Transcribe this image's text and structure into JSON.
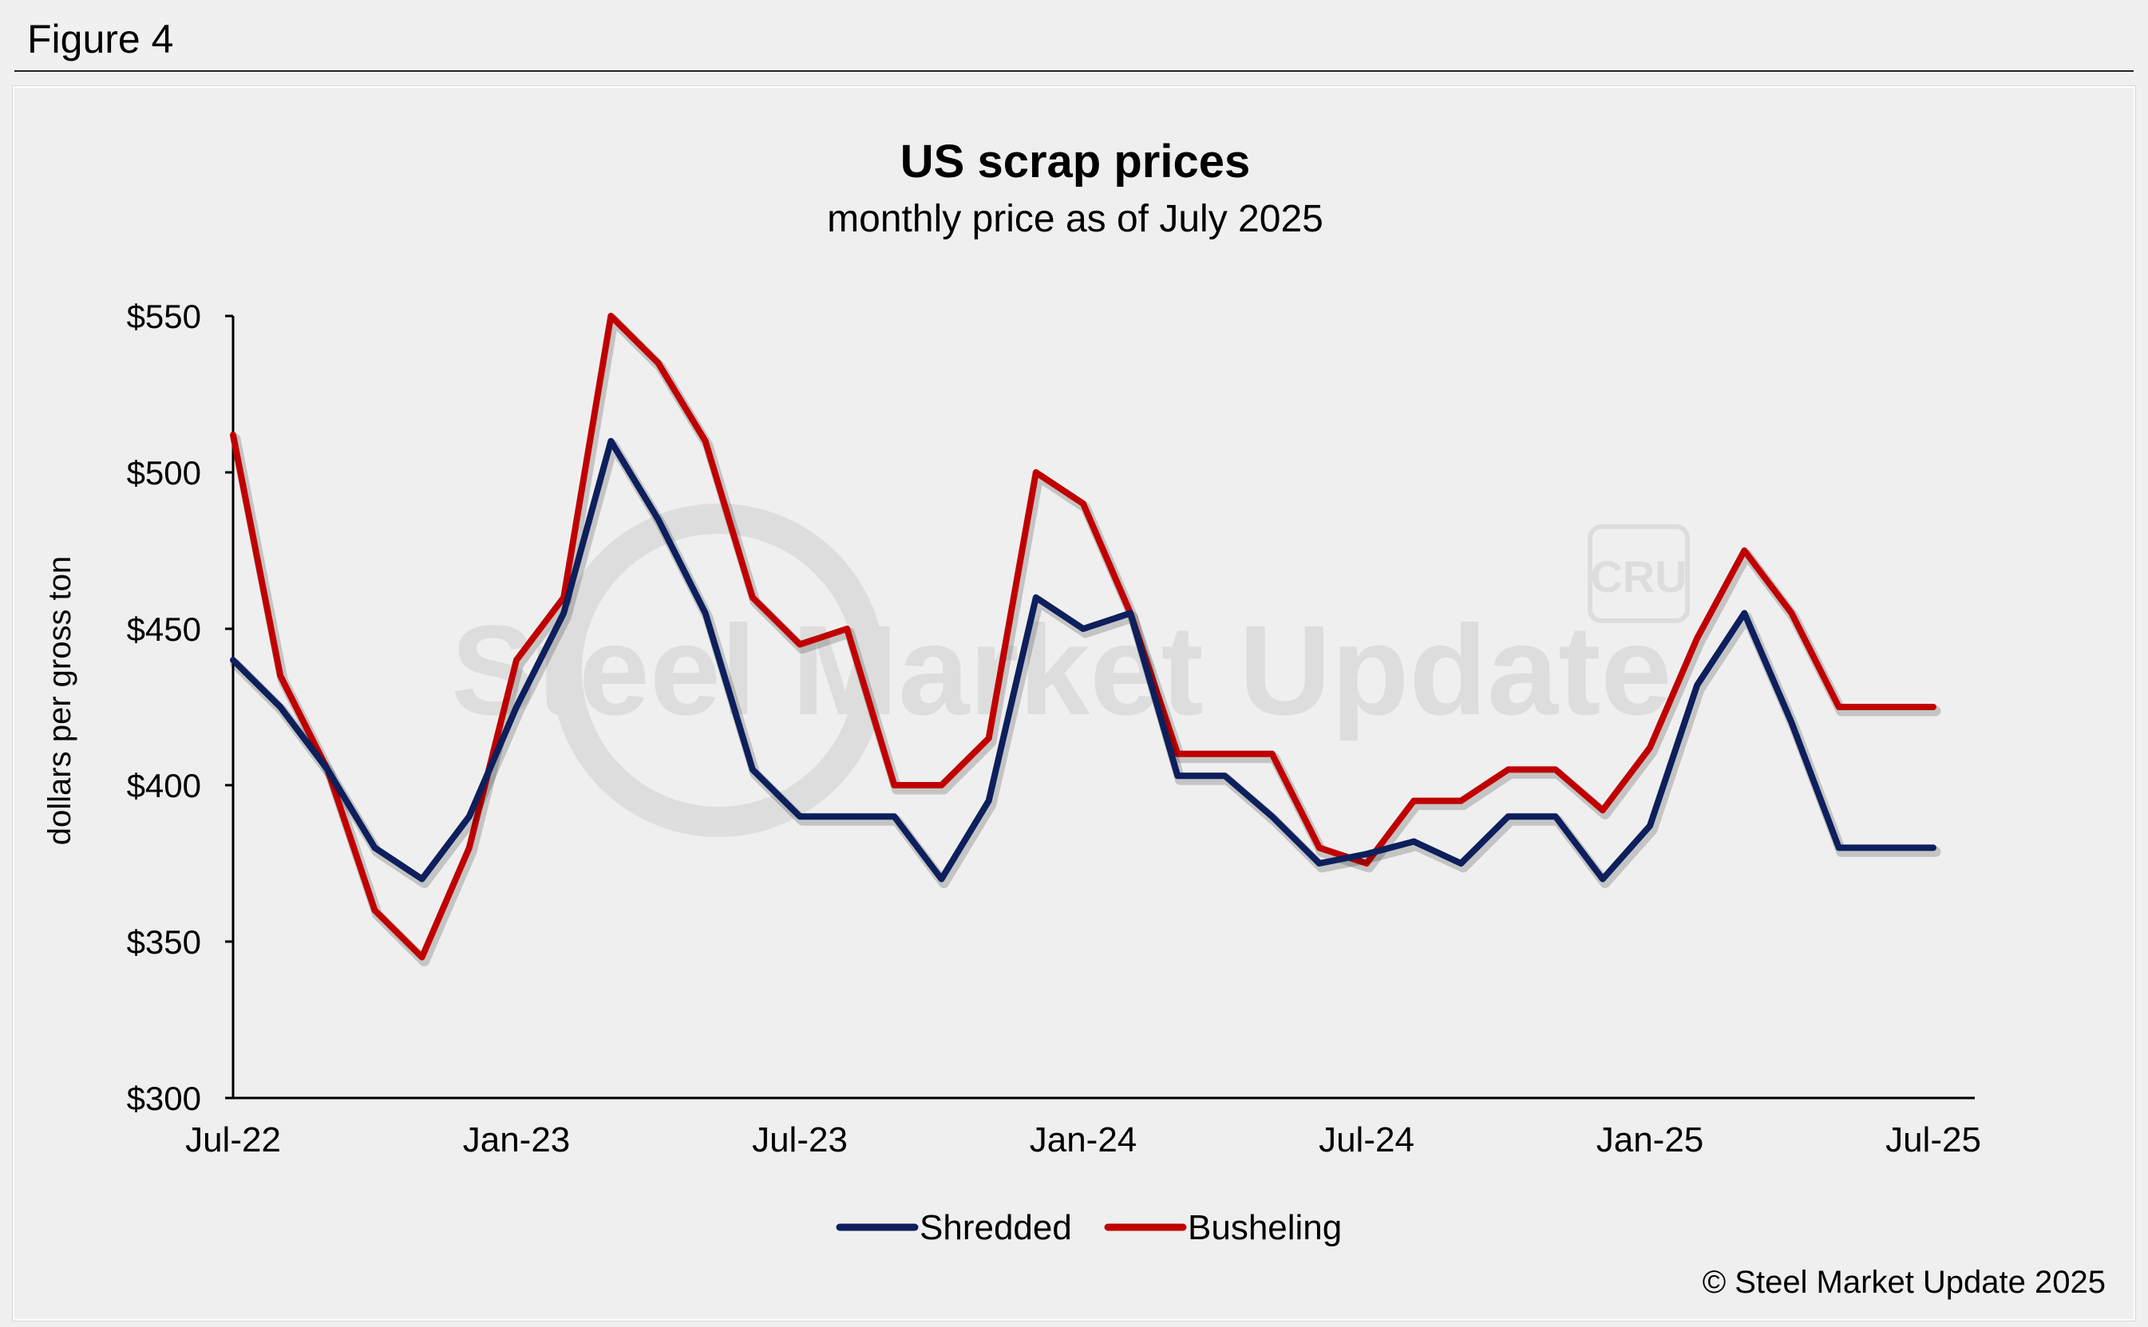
{
  "figure_label": "Figure 4",
  "copyright": "© Steel Market Update 2025",
  "watermark": {
    "brand": "Steel Market Update",
    "logo": "CRU"
  },
  "chart_data": {
    "type": "line",
    "title": "US scrap prices",
    "subtitle": "monthly price as of July 2025",
    "xlabel": "",
    "ylabel": "dollars per  gross ton",
    "ylim": [
      300,
      550
    ],
    "yticks": [
      550,
      500,
      450,
      400,
      350,
      300
    ],
    "ytick_labels": [
      "$550",
      "$500",
      "$450",
      "$400",
      "$350",
      "$300"
    ],
    "x": [
      "Jul-22",
      "Aug-22",
      "Sep-22",
      "Oct-22",
      "Nov-22",
      "Dec-22",
      "Jan-23",
      "Feb-23",
      "Mar-23",
      "Apr-23",
      "May-23",
      "Jun-23",
      "Jul-23",
      "Aug-23",
      "Sep-23",
      "Oct-23",
      "Nov-23",
      "Dec-23",
      "Jan-24",
      "Feb-24",
      "Mar-24",
      "Apr-24",
      "May-24",
      "Jun-24",
      "Jul-24",
      "Aug-24",
      "Sep-24",
      "Oct-24",
      "Nov-24",
      "Dec-24",
      "Jan-25",
      "Feb-25",
      "Mar-25",
      "Apr-25",
      "May-25",
      "Jun-25",
      "Jul-25"
    ],
    "xtick_labels": [
      "Jul-22",
      "Jan-23",
      "Jul-23",
      "Jan-24",
      "Jul-24",
      "Jan-25",
      "Jul-25"
    ],
    "xtick_indices": [
      0,
      6,
      12,
      18,
      24,
      30,
      36
    ],
    "grid": false,
    "legend_position": "bottom-center",
    "series": [
      {
        "name": "Shredded",
        "color": "#0d1f5c",
        "values": [
          440,
          425,
          405,
          380,
          370,
          390,
          425,
          455,
          510,
          485,
          455,
          405,
          390,
          390,
          390,
          370,
          395,
          460,
          450,
          455,
          403,
          403,
          390,
          375,
          378,
          382,
          375,
          390,
          390,
          370,
          387,
          432,
          455,
          420,
          380,
          380,
          380
        ]
      },
      {
        "name": "Busheling",
        "color": "#c00000",
        "values": [
          512,
          435,
          405,
          360,
          345,
          380,
          440,
          460,
          550,
          535,
          510,
          460,
          445,
          450,
          400,
          400,
          415,
          500,
          490,
          455,
          410,
          410,
          410,
          380,
          375,
          395,
          395,
          405,
          405,
          392,
          412,
          447,
          475,
          455,
          425,
          425,
          425
        ]
      }
    ]
  }
}
